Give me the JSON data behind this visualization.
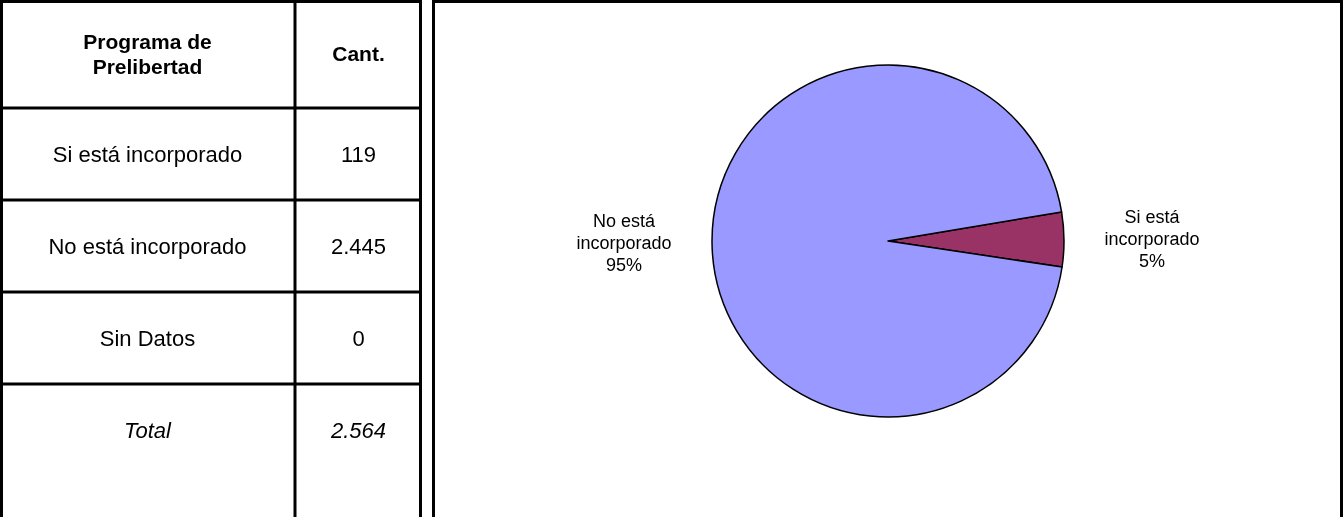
{
  "chart_data": {
    "type": "pie",
    "legend_title": "Programa de Prelibertad",
    "categories": [
      "Si está incorporado",
      "No está incorporado",
      "Sin Datos"
    ],
    "values": [
      5,
      95,
      0
    ],
    "colors": [
      "#993366",
      "#9999ff",
      "#ffffcc"
    ],
    "value_labels": [
      "5%",
      "95%",
      null
    ],
    "annotations": [
      "Cant.",
      "119",
      "2.445",
      "0",
      "Total",
      "2.564"
    ]
  }
}
